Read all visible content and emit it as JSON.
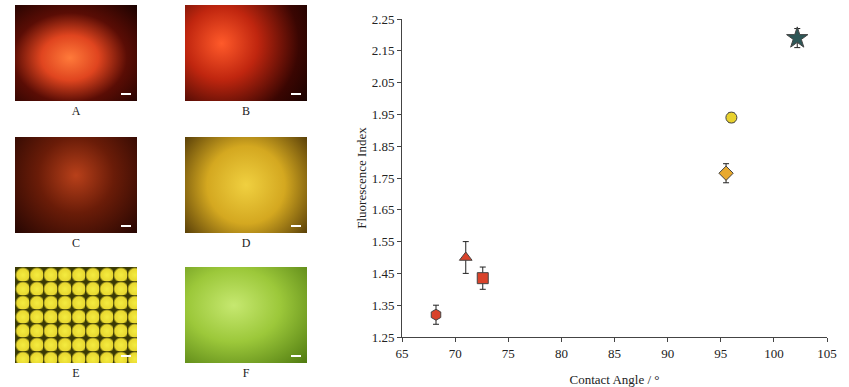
{
  "panels": {
    "labels": [
      "A",
      "B",
      "C",
      "D",
      "E",
      "F"
    ]
  },
  "chart_data": {
    "type": "scatter",
    "x_label": "Contact Angle / °",
    "y_label": "Fluorescence Index",
    "xlim": [
      65,
      105
    ],
    "xticks": [
      65,
      70,
      75,
      80,
      85,
      90,
      95,
      100,
      105
    ],
    "ylim": [
      1.25,
      2.25
    ],
    "yticks": [
      1.25,
      1.35,
      1.45,
      1.55,
      1.65,
      1.75,
      1.85,
      1.95,
      2.05,
      2.15,
      2.25
    ],
    "grid": false,
    "series": [
      {
        "x": [
          68.2
        ],
        "values": [
          1.32
        ],
        "error": [
          0.03
        ],
        "color": "#d9432b",
        "marker": "hexagon"
      },
      {
        "x": [
          71.0
        ],
        "values": [
          1.5
        ],
        "error": [
          0.05
        ],
        "color": "#d9432b",
        "marker": "triangle-up"
      },
      {
        "x": [
          72.6
        ],
        "values": [
          1.435
        ],
        "error": [
          0.035
        ],
        "color": "#d9432b",
        "marker": "square"
      },
      {
        "x": [
          95.5
        ],
        "values": [
          1.765
        ],
        "error": [
          0.03
        ],
        "color": "#e8a92e",
        "marker": "diamond"
      },
      {
        "x": [
          96.0
        ],
        "values": [
          1.94
        ],
        "error": [
          0.015
        ],
        "color": "#e8d12e",
        "marker": "circle"
      },
      {
        "x": [
          102.2
        ],
        "values": [
          2.19
        ],
        "error": [
          0.03
        ],
        "color": "#2e5757",
        "marker": "star"
      }
    ]
  }
}
